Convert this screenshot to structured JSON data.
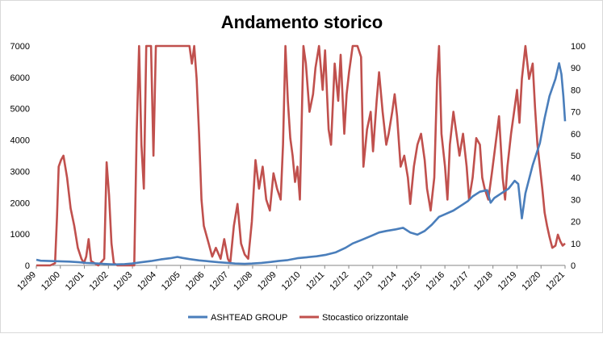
{
  "chart_data": {
    "type": "line",
    "title": "Andamento storico",
    "x_categories": [
      "12/99",
      "12/00",
      "12/01",
      "12/02",
      "12/03",
      "12/04",
      "12/05",
      "12/06",
      "12/07",
      "12/08",
      "12/09",
      "12/10",
      "12/11",
      "12/12",
      "12/13",
      "12/14",
      "12/15",
      "12/16",
      "12/17",
      "12/18",
      "12/19",
      "12/20",
      "12/21"
    ],
    "x_range": [
      1999.92,
      2021.95
    ],
    "y_left": {
      "ticks": [
        0,
        1000,
        2000,
        3000,
        4000,
        5000,
        6000,
        7000
      ],
      "ylim": [
        0,
        7000
      ]
    },
    "y_right": {
      "ticks": [
        0,
        10,
        20,
        30,
        40,
        50,
        60,
        70,
        80,
        90,
        100
      ],
      "ylim": [
        0,
        100
      ]
    },
    "grid": false,
    "legend_position": "bottom",
    "series": [
      {
        "name": "ASHTEAD GROUP",
        "axis": "left",
        "color": "#4a7ebb",
        "points": [
          [
            1999.92,
            180
          ],
          [
            2000.1,
            150
          ],
          [
            2000.5,
            140
          ],
          [
            2000.9,
            130
          ],
          [
            2001.3,
            120
          ],
          [
            2001.7,
            100
          ],
          [
            2002.0,
            80
          ],
          [
            2002.5,
            60
          ],
          [
            2002.9,
            40
          ],
          [
            2003.2,
            30
          ],
          [
            2003.6,
            40
          ],
          [
            2003.9,
            60
          ],
          [
            2004.3,
            100
          ],
          [
            2004.7,
            140
          ],
          [
            2005.1,
            190
          ],
          [
            2005.5,
            230
          ],
          [
            2005.8,
            270
          ],
          [
            2006.0,
            240
          ],
          [
            2006.3,
            200
          ],
          [
            2006.7,
            160
          ],
          [
            2007.1,
            130
          ],
          [
            2007.5,
            100
          ],
          [
            2007.9,
            80
          ],
          [
            2008.2,
            60
          ],
          [
            2008.6,
            50
          ],
          [
            2008.9,
            60
          ],
          [
            2009.3,
            80
          ],
          [
            2009.7,
            110
          ],
          [
            2010.0,
            140
          ],
          [
            2010.4,
            170
          ],
          [
            2010.8,
            230
          ],
          [
            2011.2,
            260
          ],
          [
            2011.6,
            290
          ],
          [
            2012.0,
            340
          ],
          [
            2012.4,
            420
          ],
          [
            2012.8,
            560
          ],
          [
            2013.1,
            700
          ],
          [
            2013.5,
            820
          ],
          [
            2013.9,
            950
          ],
          [
            2014.2,
            1050
          ],
          [
            2014.5,
            1100
          ],
          [
            2014.9,
            1150
          ],
          [
            2015.2,
            1200
          ],
          [
            2015.5,
            1050
          ],
          [
            2015.8,
            980
          ],
          [
            2016.1,
            1100
          ],
          [
            2016.4,
            1300
          ],
          [
            2016.7,
            1550
          ],
          [
            2017.0,
            1650
          ],
          [
            2017.3,
            1750
          ],
          [
            2017.6,
            1900
          ],
          [
            2017.9,
            2050
          ],
          [
            2018.1,
            2200
          ],
          [
            2018.4,
            2350
          ],
          [
            2018.7,
            2400
          ],
          [
            2018.85,
            2000
          ],
          [
            2019.0,
            2150
          ],
          [
            2019.3,
            2300
          ],
          [
            2019.6,
            2450
          ],
          [
            2019.85,
            2700
          ],
          [
            2020.0,
            2600
          ],
          [
            2020.15,
            1500
          ],
          [
            2020.3,
            2300
          ],
          [
            2020.6,
            3200
          ],
          [
            2020.9,
            3900
          ],
          [
            2021.1,
            4700
          ],
          [
            2021.3,
            5400
          ],
          [
            2021.55,
            5950
          ],
          [
            2021.7,
            6450
          ],
          [
            2021.8,
            6100
          ],
          [
            2021.88,
            5400
          ],
          [
            2021.95,
            4600
          ]
        ]
      },
      {
        "name": "Stocastico orizzontale",
        "axis": "right",
        "color": "#c0504d",
        "points": [
          [
            1999.92,
            0
          ],
          [
            2000.5,
            0
          ],
          [
            2000.7,
            1
          ],
          [
            2000.78,
            22
          ],
          [
            2000.85,
            45
          ],
          [
            2000.95,
            48
          ],
          [
            2001.05,
            50
          ],
          [
            2001.2,
            40
          ],
          [
            2001.35,
            26
          ],
          [
            2001.5,
            18
          ],
          [
            2001.65,
            8
          ],
          [
            2001.8,
            3
          ],
          [
            2001.9,
            1
          ],
          [
            2002.0,
            4
          ],
          [
            2002.1,
            12
          ],
          [
            2002.2,
            2
          ],
          [
            2002.5,
            0
          ],
          [
            2002.75,
            3
          ],
          [
            2002.85,
            47
          ],
          [
            2002.95,
            32
          ],
          [
            2003.05,
            10
          ],
          [
            2003.15,
            1
          ],
          [
            2003.3,
            0
          ],
          [
            2003.5,
            0
          ],
          [
            2003.7,
            0
          ],
          [
            2004.0,
            0
          ],
          [
            2004.1,
            60
          ],
          [
            2004.2,
            100
          ],
          [
            2004.3,
            55
          ],
          [
            2004.4,
            35
          ],
          [
            2004.5,
            100
          ],
          [
            2004.7,
            100
          ],
          [
            2004.8,
            50
          ],
          [
            2004.9,
            100
          ],
          [
            2005.1,
            100
          ],
          [
            2005.5,
            100
          ],
          [
            2005.8,
            100
          ],
          [
            2006.3,
            100
          ],
          [
            2006.4,
            92
          ],
          [
            2006.5,
            100
          ],
          [
            2006.6,
            85
          ],
          [
            2006.7,
            60
          ],
          [
            2006.8,
            30
          ],
          [
            2006.9,
            18
          ],
          [
            2007.1,
            10
          ],
          [
            2007.25,
            4
          ],
          [
            2007.4,
            8
          ],
          [
            2007.6,
            3
          ],
          [
            2007.75,
            12
          ],
          [
            2007.9,
            3
          ],
          [
            2008.0,
            1
          ],
          [
            2008.15,
            18
          ],
          [
            2008.3,
            28
          ],
          [
            2008.45,
            10
          ],
          [
            2008.6,
            5
          ],
          [
            2008.75,
            3
          ],
          [
            2008.9,
            20
          ],
          [
            2009.05,
            48
          ],
          [
            2009.2,
            35
          ],
          [
            2009.35,
            45
          ],
          [
            2009.5,
            30
          ],
          [
            2009.65,
            25
          ],
          [
            2009.8,
            42
          ],
          [
            2009.95,
            35
          ],
          [
            2010.1,
            30
          ],
          [
            2010.2,
            55
          ],
          [
            2010.3,
            100
          ],
          [
            2010.4,
            75
          ],
          [
            2010.5,
            58
          ],
          [
            2010.6,
            50
          ],
          [
            2010.7,
            38
          ],
          [
            2010.8,
            45
          ],
          [
            2010.9,
            30
          ],
          [
            2011.05,
            100
          ],
          [
            2011.15,
            92
          ],
          [
            2011.3,
            70
          ],
          [
            2011.45,
            78
          ],
          [
            2011.55,
            90
          ],
          [
            2011.7,
            100
          ],
          [
            2011.85,
            80
          ],
          [
            2011.95,
            98
          ],
          [
            2012.1,
            62
          ],
          [
            2012.2,
            55
          ],
          [
            2012.35,
            92
          ],
          [
            2012.5,
            75
          ],
          [
            2012.6,
            96
          ],
          [
            2012.75,
            60
          ],
          [
            2012.85,
            78
          ],
          [
            2012.95,
            88
          ],
          [
            2013.1,
            100
          ],
          [
            2013.3,
            100
          ],
          [
            2013.45,
            95
          ],
          [
            2013.55,
            45
          ],
          [
            2013.7,
            62
          ],
          [
            2013.85,
            70
          ],
          [
            2013.95,
            52
          ],
          [
            2014.1,
            75
          ],
          [
            2014.2,
            88
          ],
          [
            2014.35,
            70
          ],
          [
            2014.5,
            55
          ],
          [
            2014.6,
            60
          ],
          [
            2014.75,
            70
          ],
          [
            2014.85,
            78
          ],
          [
            2014.95,
            68
          ],
          [
            2015.1,
            45
          ],
          [
            2015.25,
            50
          ],
          [
            2015.4,
            40
          ],
          [
            2015.5,
            28
          ],
          [
            2015.65,
            45
          ],
          [
            2015.8,
            55
          ],
          [
            2015.95,
            60
          ],
          [
            2016.1,
            48
          ],
          [
            2016.2,
            35
          ],
          [
            2016.35,
            25
          ],
          [
            2016.5,
            40
          ],
          [
            2016.62,
            85
          ],
          [
            2016.7,
            100
          ],
          [
            2016.8,
            60
          ],
          [
            2016.95,
            45
          ],
          [
            2017.05,
            30
          ],
          [
            2017.15,
            55
          ],
          [
            2017.3,
            70
          ],
          [
            2017.4,
            62
          ],
          [
            2017.55,
            50
          ],
          [
            2017.7,
            60
          ],
          [
            2017.85,
            45
          ],
          [
            2017.95,
            30
          ],
          [
            2018.1,
            40
          ],
          [
            2018.25,
            58
          ],
          [
            2018.4,
            55
          ],
          [
            2018.5,
            40
          ],
          [
            2018.6,
            35
          ],
          [
            2018.75,
            30
          ],
          [
            2018.9,
            42
          ],
          [
            2019.05,
            55
          ],
          [
            2019.2,
            68
          ],
          [
            2019.35,
            40
          ],
          [
            2019.45,
            30
          ],
          [
            2019.55,
            45
          ],
          [
            2019.7,
            60
          ],
          [
            2019.85,
            72
          ],
          [
            2019.95,
            80
          ],
          [
            2020.05,
            65
          ],
          [
            2020.15,
            85
          ],
          [
            2020.3,
            100
          ],
          [
            2020.45,
            85
          ],
          [
            2020.6,
            92
          ],
          [
            2020.7,
            72
          ],
          [
            2020.8,
            55
          ],
          [
            2020.9,
            45
          ],
          [
            2021.0,
            35
          ],
          [
            2021.1,
            24
          ],
          [
            2021.2,
            18
          ],
          [
            2021.3,
            13
          ],
          [
            2021.42,
            8
          ],
          [
            2021.55,
            9
          ],
          [
            2021.65,
            14
          ],
          [
            2021.75,
            11
          ],
          [
            2021.85,
            9
          ],
          [
            2021.95,
            10
          ]
        ]
      }
    ]
  }
}
